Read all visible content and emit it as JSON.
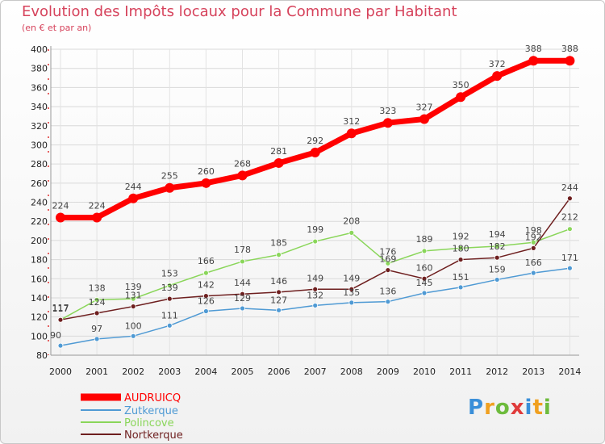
{
  "chart_data": {
    "type": "line",
    "title": "Evolution des Impôts locaux pour la Commune par Habitant",
    "subtitle": "(en € et par an)",
    "xlabel": "",
    "ylabel": "",
    "ylim": [
      80,
      400
    ],
    "yticks": [
      80,
      100,
      120,
      140,
      160,
      180,
      200,
      220,
      240,
      260,
      280,
      300,
      320,
      340,
      360,
      380,
      400
    ],
    "x": [
      "2000",
      "2001",
      "2002",
      "2003",
      "2004",
      "2005",
      "2006",
      "2007",
      "2008",
      "2009",
      "2010",
      "2011",
      "2012",
      "2013",
      "2014"
    ],
    "grid": true,
    "legend_position": "bottom-left",
    "series": [
      {
        "name": "AUDRUICQ",
        "color": "#ff0000",
        "values": [
          224,
          224,
          244,
          255,
          260,
          268,
          281,
          292,
          312,
          323,
          327,
          350,
          372,
          388,
          388
        ]
      },
      {
        "name": "Zutkerque",
        "color": "#4f9ad4",
        "values": [
          90,
          97,
          100,
          111,
          126,
          129,
          127,
          132,
          135,
          136,
          145,
          151,
          159,
          166,
          171
        ]
      },
      {
        "name": "Polincove",
        "color": "#8ad65a",
        "values": [
          117,
          138,
          139,
          153,
          166,
          178,
          185,
          199,
          208,
          176,
          189,
          192,
          194,
          198,
          212
        ]
      },
      {
        "name": "Nortkerque",
        "color": "#6e1f1f",
        "values": [
          117,
          124,
          131,
          139,
          142,
          144,
          146,
          149,
          149,
          169,
          160,
          180,
          182,
          192,
          244
        ]
      }
    ]
  },
  "logo": {
    "letters": [
      "P",
      "r",
      "o",
      "x",
      "i",
      "t",
      "i"
    ],
    "colors": [
      "#3a8fd9",
      "#f0a020",
      "#6dbb3c",
      "#e03b3b",
      "#3a8fd9",
      "#f0a020",
      "#6dbb3c"
    ]
  }
}
